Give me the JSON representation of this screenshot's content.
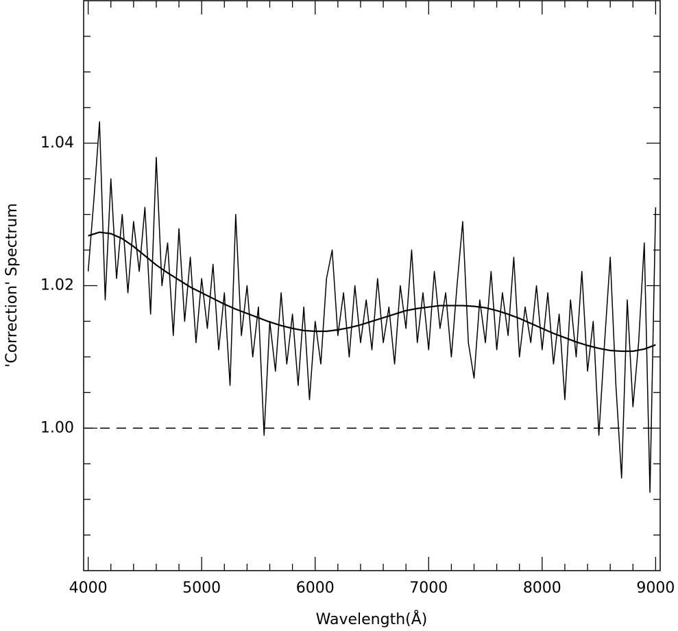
{
  "chart_data": {
    "type": "line",
    "xlabel": "Wavelength(Å)",
    "ylabel": "'Correction' Spectrum",
    "xlim": [
      3960,
      9040
    ],
    "ylim": [
      0.98,
      1.06
    ],
    "xticks": [
      4000,
      5000,
      6000,
      7000,
      8000,
      9000
    ],
    "xminorticks": [
      4200,
      4400,
      4600,
      4800,
      5200,
      5400,
      5600,
      5800,
      6200,
      6400,
      6600,
      6800,
      7200,
      7400,
      7600,
      7800,
      8200,
      8400,
      8600,
      8800
    ],
    "yticks": [
      {
        "value": 1.0,
        "label": "1.00"
      },
      {
        "value": 1.02,
        "label": "1.02"
      },
      {
        "value": 1.04,
        "label": "1.04"
      }
    ],
    "yminorticks": [
      0.985,
      0.99,
      0.995,
      1.005,
      1.01,
      1.015,
      1.025,
      1.03,
      1.035,
      1.045,
      1.05,
      1.055
    ],
    "reference_line": 1.0,
    "series": [
      {
        "color": "#000000",
        "x": [
          4000,
          4050,
          4100,
          4150,
          4200,
          4250,
          4300,
          4350,
          4400,
          4450,
          4500,
          4550,
          4600,
          4650,
          4700,
          4750,
          4800,
          4850,
          4900,
          4950,
          5000,
          5050,
          5100,
          5150,
          5200,
          5250,
          5300,
          5350,
          5400,
          5450,
          5500,
          5550,
          5600,
          5650,
          5700,
          5750,
          5800,
          5850,
          5900,
          5950,
          6000,
          6050,
          6100,
          6150,
          6200,
          6250,
          6300,
          6350,
          6400,
          6450,
          6500,
          6550,
          6600,
          6650,
          6700,
          6750,
          6800,
          6850,
          6900,
          6950,
          7000,
          7050,
          7100,
          7150,
          7200,
          7250,
          7300,
          7350,
          7400,
          7450,
          7500,
          7550,
          7600,
          7650,
          7700,
          7750,
          7800,
          7850,
          7900,
          7950,
          8000,
          8050,
          8100,
          8150,
          8200,
          8250,
          8300,
          8350,
          8400,
          8450,
          8500,
          8550,
          8600,
          8650,
          8700,
          8750,
          8800,
          8850,
          8900,
          8950,
          9000
        ],
        "values": [
          1.022,
          1.032,
          1.043,
          1.018,
          1.035,
          1.021,
          1.03,
          1.019,
          1.029,
          1.022,
          1.031,
          1.016,
          1.038,
          1.02,
          1.026,
          1.013,
          1.028,
          1.015,
          1.024,
          1.012,
          1.021,
          1.014,
          1.023,
          1.011,
          1.019,
          1.006,
          1.03,
          1.013,
          1.02,
          1.01,
          1.017,
          0.999,
          1.015,
          1.008,
          1.019,
          1.009,
          1.016,
          1.006,
          1.017,
          1.004,
          1.015,
          1.009,
          1.021,
          1.025,
          1.013,
          1.019,
          1.01,
          1.02,
          1.012,
          1.018,
          1.011,
          1.021,
          1.012,
          1.017,
          1.009,
          1.02,
          1.014,
          1.025,
          1.012,
          1.019,
          1.011,
          1.022,
          1.014,
          1.019,
          1.01,
          1.02,
          1.029,
          1.012,
          1.007,
          1.018,
          1.012,
          1.022,
          1.011,
          1.019,
          1.013,
          1.024,
          1.01,
          1.017,
          1.012,
          1.02,
          1.011,
          1.019,
          1.009,
          1.016,
          1.004,
          1.018,
          1.01,
          1.022,
          1.008,
          1.015,
          0.999,
          1.012,
          1.024,
          1.006,
          0.993,
          1.018,
          1.003,
          1.012,
          1.026,
          0.991,
          1.031
        ]
      },
      {
        "color": "#000000",
        "x": [
          4000,
          4100,
          4200,
          4300,
          4400,
          4500,
          4600,
          4700,
          4800,
          4900,
          5000,
          5100,
          5200,
          5300,
          5400,
          5500,
          5600,
          5700,
          5800,
          5900,
          6000,
          6100,
          6200,
          6300,
          6400,
          6500,
          6600,
          6700,
          6800,
          6900,
          7000,
          7100,
          7200,
          7300,
          7400,
          7500,
          7600,
          7700,
          7800,
          7900,
          8000,
          8100,
          8200,
          8300,
          8400,
          8500,
          8600,
          8700,
          8800,
          8900,
          9000
        ],
        "values": [
          1.027,
          1.0275,
          1.0273,
          1.0266,
          1.0255,
          1.0242,
          1.0229,
          1.0218,
          1.0208,
          1.0198,
          1.019,
          1.0182,
          1.0174,
          1.0167,
          1.0161,
          1.0155,
          1.0149,
          1.0144,
          1.014,
          1.0137,
          1.0136,
          1.0136,
          1.0138,
          1.0141,
          1.0145,
          1.015,
          1.0155,
          1.016,
          1.0165,
          1.0168,
          1.017,
          1.0172,
          1.0172,
          1.0172,
          1.0171,
          1.0169,
          1.0165,
          1.016,
          1.0154,
          1.0147,
          1.014,
          1.0133,
          1.0127,
          1.0121,
          1.0116,
          1.0112,
          1.0109,
          1.0108,
          1.0108,
          1.0111,
          1.0117
        ]
      }
    ]
  }
}
